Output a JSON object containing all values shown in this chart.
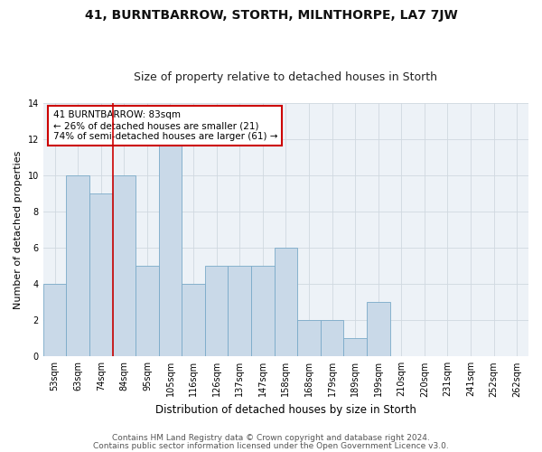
{
  "title": "41, BURNTBARROW, STORTH, MILNTHORPE, LA7 7JW",
  "subtitle": "Size of property relative to detached houses in Storth",
  "xlabel": "Distribution of detached houses by size in Storth",
  "ylabel": "Number of detached properties",
  "categories": [
    "53sqm",
    "63sqm",
    "74sqm",
    "84sqm",
    "95sqm",
    "105sqm",
    "116sqm",
    "126sqm",
    "137sqm",
    "147sqm",
    "158sqm",
    "168sqm",
    "179sqm",
    "189sqm",
    "199sqm",
    "210sqm",
    "220sqm",
    "231sqm",
    "241sqm",
    "252sqm",
    "262sqm"
  ],
  "values": [
    4,
    10,
    9,
    10,
    5,
    12,
    4,
    5,
    5,
    5,
    6,
    2,
    2,
    1,
    3,
    0,
    0,
    0,
    0,
    0,
    0
  ],
  "bar_color": "#c9d9e8",
  "bar_edge_color": "#7aaac8",
  "red_line_x": 2.5,
  "annotation_text": "41 BURNTBARROW: 83sqm\n← 26% of detached houses are smaller (21)\n74% of semi-detached houses are larger (61) →",
  "annotation_box_color": "#ffffff",
  "annotation_border_color": "#cc0000",
  "grid_color": "#d0d8e0",
  "background_color": "#edf2f7",
  "ylim": [
    0,
    14
  ],
  "yticks": [
    0,
    2,
    4,
    6,
    8,
    10,
    12,
    14
  ],
  "footer_line1": "Contains HM Land Registry data © Crown copyright and database right 2024.",
  "footer_line2": "Contains public sector information licensed under the Open Government Licence v3.0.",
  "title_fontsize": 10,
  "subtitle_fontsize": 9,
  "xlabel_fontsize": 8.5,
  "ylabel_fontsize": 8,
  "tick_fontsize": 7,
  "annotation_fontsize": 7.5,
  "footer_fontsize": 6.5
}
